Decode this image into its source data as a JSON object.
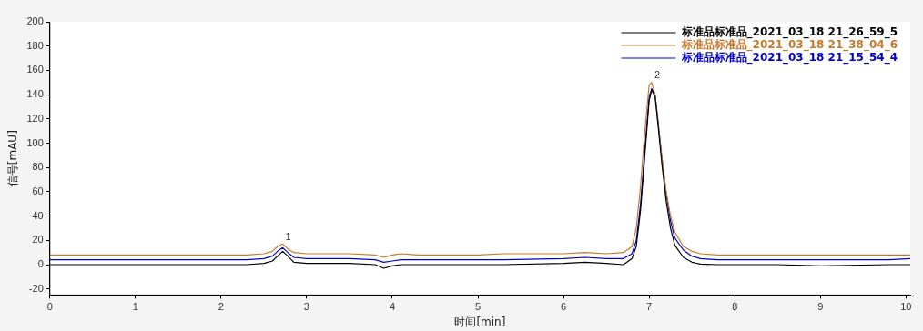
{
  "chart_data": {
    "type": "line",
    "xlabel": "时间[min]",
    "ylabel": "信号[mAU]",
    "xlim": [
      0,
      10.05
    ],
    "xticks": [
      0,
      1,
      2,
      3,
      4,
      5,
      6,
      7,
      8,
      9,
      10
    ],
    "ylim": [
      -25,
      200
    ],
    "yticks": [
      -20,
      0,
      20,
      40,
      60,
      80,
      100,
      120,
      140,
      160,
      180,
      200
    ],
    "grid": false,
    "legend": "top right",
    "marker": "none",
    "line_style": "solid",
    "x": [
      0,
      2.3,
      2.5,
      2.6,
      2.66,
      2.72,
      2.78,
      2.85,
      3.0,
      3.5,
      3.8,
      3.9,
      4.0,
      4.1,
      4.3,
      5.0,
      5.3,
      6.0,
      6.25,
      6.5,
      6.7,
      6.8,
      6.85,
      6.9,
      6.95,
      7.0,
      7.03,
      7.07,
      7.1,
      7.15,
      7.2,
      7.25,
      7.3,
      7.4,
      7.5,
      7.6,
      7.8,
      8.5,
      9.0,
      9.8,
      10.05
    ],
    "series": [
      {
        "name": "标准品标准品_2021_03_18 21_26_59_5",
        "color": "#000000",
        "values": [
          0,
          0,
          1,
          3,
          7,
          11,
          7,
          2,
          1,
          1,
          0,
          -3,
          -1,
          0,
          0,
          0,
          0,
          1,
          2,
          1,
          0,
          5,
          15,
          45,
          90,
          135,
          144,
          138,
          118,
          82,
          52,
          30,
          16,
          6,
          2,
          0.5,
          0,
          0,
          -1,
          0,
          0
        ]
      },
      {
        "name": "标准品标准品_2021_03_18 21_38_04_6",
        "color": "#c8782a",
        "values": [
          8,
          8,
          9,
          11,
          15,
          17,
          13,
          10,
          9,
          9,
          8,
          6,
          8,
          9,
          8,
          8,
          9,
          9,
          10,
          9,
          10,
          15,
          30,
          65,
          110,
          148,
          150,
          140,
          118,
          88,
          60,
          40,
          27,
          15,
          11,
          9,
          8,
          8,
          8,
          8,
          8
        ]
      },
      {
        "name": "标准品标准品_2021_03_18 21_15_54_4",
        "color": "#0000cc",
        "values": [
          4,
          4,
          5,
          7,
          11,
          14,
          10,
          6,
          5,
          5,
          4,
          2,
          3,
          4,
          4,
          4,
          4,
          5,
          6,
          5,
          5,
          9,
          20,
          50,
          95,
          138,
          145,
          140,
          121,
          87,
          58,
          36,
          22,
          12,
          7,
          5,
          4,
          4,
          4,
          4,
          5
        ]
      }
    ],
    "annotations": [
      {
        "text": "1",
        "x": 2.72,
        "y": 17
      },
      {
        "text": "2",
        "x": 7.03,
        "y": 150
      }
    ]
  }
}
